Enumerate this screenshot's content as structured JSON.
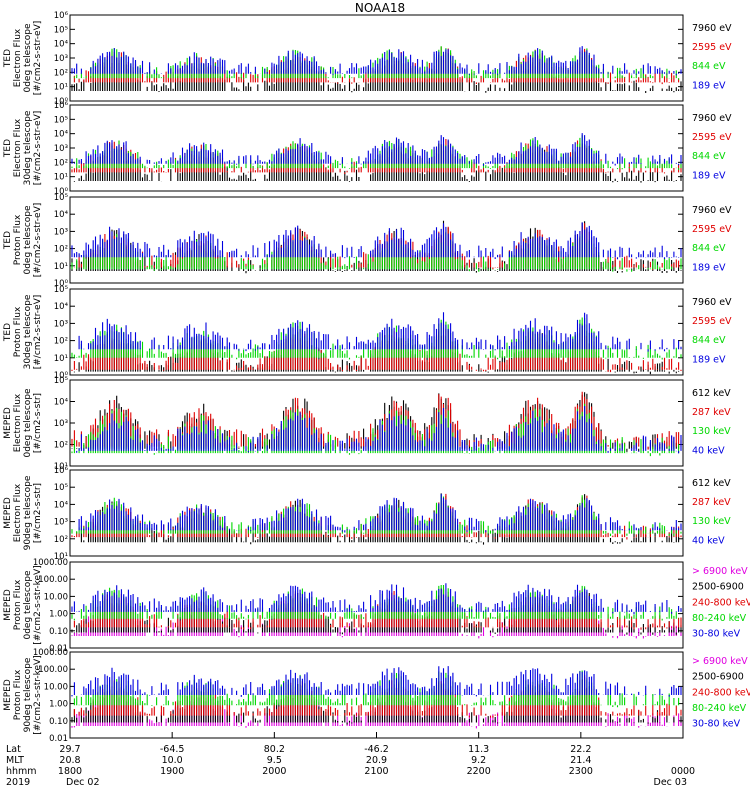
{
  "chart_data": {
    "type": "line",
    "title": "NOAA18",
    "panels": [
      {
        "id": "ted-e-0",
        "ylabel": [
          "TED",
          "Electron Flux",
          "0deg telescope",
          "[#/cm2-s-str-eV]"
        ],
        "ymin_exp": 0,
        "ymax_exp": 6,
        "log": true,
        "ticks": [
          "10⁰",
          "10¹",
          "10²",
          "10³",
          "10⁴",
          "10⁵",
          "10⁶"
        ],
        "series": [
          {
            "name": "7960 eV",
            "color": "#000000",
            "level": 1.0
          },
          {
            "name": "2595 eV",
            "color": "#e00000",
            "level": 1.6
          },
          {
            "name": "844 eV",
            "color": "#00d800",
            "level": 1.9
          },
          {
            "name": "189 eV",
            "color": "#0000e0",
            "level": 2.2
          }
        ]
      },
      {
        "id": "ted-e-30",
        "ylabel": [
          "TED",
          "Electron Flux",
          "30deg telescope",
          "[#/cm2-s-str-eV]"
        ],
        "ymin_exp": 0,
        "ymax_exp": 6,
        "log": true,
        "ticks": [
          "10⁰",
          "10¹",
          "10²",
          "10³",
          "10⁴",
          "10⁵",
          "10⁶"
        ],
        "series": [
          {
            "name": "7960 eV",
            "color": "#000000",
            "level": 1.0
          },
          {
            "name": "2595 eV",
            "color": "#e00000",
            "level": 1.6
          },
          {
            "name": "844 eV",
            "color": "#00d800",
            "level": 1.9
          },
          {
            "name": "189 eV",
            "color": "#0000e0",
            "level": 2.2
          }
        ]
      },
      {
        "id": "ted-p-0",
        "ylabel": [
          "TED",
          "Proton Flux",
          "0deg telescope",
          "[#/cm2-s-str-eV]"
        ],
        "ymin_exp": 0,
        "ymax_exp": 5,
        "log": true,
        "ticks": [
          "10⁰",
          "10¹",
          "10²",
          "10³",
          "10⁴",
          "10⁵"
        ],
        "series": [
          {
            "name": "7960 eV",
            "color": "#000000",
            "level": 1.0
          },
          {
            "name": "2595 eV",
            "color": "#e00000",
            "level": 1.2
          },
          {
            "name": "844 eV",
            "color": "#00d800",
            "level": 1.1
          },
          {
            "name": "189 eV",
            "color": "#0000e0",
            "level": 1.8
          }
        ]
      },
      {
        "id": "ted-p-30",
        "ylabel": [
          "TED",
          "Proton Flux",
          "30deg telescope",
          "[#/cm2-s-str-eV]"
        ],
        "ymin_exp": 0,
        "ymax_exp": 5,
        "log": true,
        "ticks": [
          "10⁰",
          "10¹",
          "10²",
          "10³",
          "10⁴",
          "10⁵"
        ],
        "series": [
          {
            "name": "7960 eV",
            "color": "#000000",
            "level": 0.5
          },
          {
            "name": "2595 eV",
            "color": "#e00000",
            "level": 0.6
          },
          {
            "name": "844 eV",
            "color": "#00d800",
            "level": 1.3
          },
          {
            "name": "189 eV",
            "color": "#0000e0",
            "level": 1.8
          }
        ]
      },
      {
        "id": "meped-e-0",
        "ylabel": [
          "MEPED",
          "Electron Flux",
          "0deg telescope",
          "[#/cm2-s-str]"
        ],
        "ymin_exp": 1,
        "ymax_exp": 5,
        "log": true,
        "ticks": [
          "10¹",
          "10²",
          "10³",
          "10⁴",
          "10⁵"
        ],
        "series": [
          {
            "name": "612 keV",
            "color": "#000000",
            "level": 2.1
          },
          {
            "name": "287 keV",
            "color": "#e00000",
            "level": 2.2
          },
          {
            "name": "130 keV",
            "color": "#00d800",
            "level": 1.9
          },
          {
            "name": "40 keV",
            "color": "#0000e0",
            "level": 2.0
          }
        ]
      },
      {
        "id": "meped-e-90",
        "ylabel": [
          "MEPED",
          "Electron Flux",
          "90deg telescope",
          "[#/cm2-s-str]"
        ],
        "ymin_exp": 1,
        "ymax_exp": 6,
        "log": true,
        "ticks": [
          "10¹",
          "10²",
          "10³",
          "10⁴",
          "10⁵",
          "10⁶"
        ],
        "series": [
          {
            "name": "612 keV",
            "color": "#000000",
            "level": 2.1
          },
          {
            "name": "287 keV",
            "color": "#e00000",
            "level": 2.4
          },
          {
            "name": "130 keV",
            "color": "#00d800",
            "level": 2.6
          },
          {
            "name": "40 keV",
            "color": "#0000e0",
            "level": 2.8
          }
        ]
      },
      {
        "id": "meped-p-0",
        "ylabel": [
          "MEPED",
          "Proton Flux",
          "0deg telescope",
          "[#/cm2-s-str-keV]"
        ],
        "ymin_exp": -2,
        "ymax_exp": 3,
        "log": true,
        "ticks": [
          "0.01",
          "0.10",
          "1.00",
          "10.00",
          "100.00",
          "1000.00"
        ],
        "series": [
          {
            "name": "> 6900 keV",
            "color": "#e000e0",
            "level": -1.0
          },
          {
            "name": "2500-6900",
            "color": "#000000",
            "level": -0.8
          },
          {
            "name": "240-800 keV",
            "color": "#e00000",
            "level": -0.5
          },
          {
            "name": "80-240 keV",
            "color": "#00d800",
            "level": 0.0
          },
          {
            "name": "30-80 keV",
            "color": "#0000e0",
            "level": 0.4
          }
        ]
      },
      {
        "id": "meped-p-90",
        "ylabel": [
          "MEPED",
          "Proton Flux",
          "90deg telescope",
          "[#/cm2-s-str-keV]"
        ],
        "ymin_exp": -2,
        "ymax_exp": 3,
        "log": true,
        "ticks": [
          "0.01",
          "0.10",
          "1.00",
          "10.00",
          "100.00",
          "1000.00"
        ],
        "series": [
          {
            "name": "> 6900 keV",
            "color": "#e000e0",
            "level": -1.0
          },
          {
            "name": "2500-6900",
            "color": "#000000",
            "level": -0.8
          },
          {
            "name": "240-800 keV",
            "color": "#e00000",
            "level": -0.4
          },
          {
            "name": "80-240 keV",
            "color": "#00d800",
            "level": 0.2
          },
          {
            "name": "30-80 keV",
            "color": "#0000e0",
            "level": 0.8
          }
        ]
      }
    ],
    "x_axis": {
      "row_labels": [
        "Lat",
        "MLT",
        "hhmm",
        "2019"
      ],
      "ticks": [
        {
          "lat": "29.7",
          "mlt": "20.8",
          "hhmm": "1800",
          "date": "Dec 02"
        },
        {
          "lat": "-64.5",
          "mlt": "10.0",
          "hhmm": "1900",
          "date": ""
        },
        {
          "lat": "80.2",
          "mlt": "9.5",
          "hhmm": "2000",
          "date": ""
        },
        {
          "lat": "-46.2",
          "mlt": "20.9",
          "hhmm": "2100",
          "date": ""
        },
        {
          "lat": "11.3",
          "mlt": "9.2",
          "hhmm": "2200",
          "date": ""
        },
        {
          "lat": "22.2",
          "mlt": "21.4",
          "hhmm": "2300",
          "date": ""
        },
        {
          "lat": "",
          "mlt": "",
          "hhmm": "0000",
          "date": "Dec 03"
        }
      ],
      "passes": [
        {
          "center": 0.07,
          "kind": "aurora"
        },
        {
          "center": 0.21,
          "kind": "saa"
        },
        {
          "center": 0.37,
          "kind": "aurora"
        },
        {
          "center": 0.53,
          "kind": "aurora"
        },
        {
          "center": 0.61,
          "kind": "peak"
        },
        {
          "center": 0.76,
          "kind": "aurora"
        },
        {
          "center": 0.84,
          "kind": "peak"
        }
      ]
    }
  }
}
